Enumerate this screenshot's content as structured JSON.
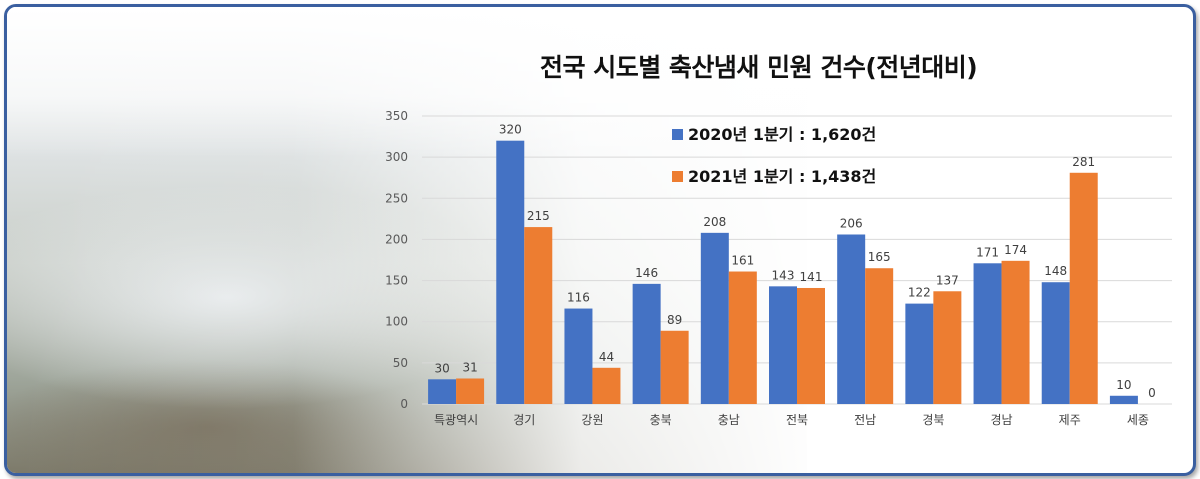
{
  "chart_data": {
    "type": "bar",
    "title": "전국 시도별 축산냄새 민원 건수(전년대비)",
    "categories": [
      "특광역시",
      "경기",
      "강원",
      "충북",
      "충남",
      "전북",
      "전남",
      "경북",
      "경남",
      "제주",
      "세종"
    ],
    "series": [
      {
        "name": "2020년 1분기 : 1,620건",
        "color": "#4472c4",
        "values": [
          30,
          320,
          116,
          146,
          208,
          143,
          206,
          122,
          171,
          148,
          10
        ]
      },
      {
        "name": "2021년 1분기 : 1,438건",
        "color": "#ed7d31",
        "values": [
          31,
          215,
          44,
          89,
          161,
          141,
          165,
          137,
          174,
          281,
          0
        ]
      }
    ],
    "ylim": [
      0,
      350
    ],
    "yticks": [
      0,
      50,
      100,
      150,
      200,
      250,
      300,
      350
    ],
    "ytick_labels": [
      "0",
      "50",
      "100",
      "150",
      "200",
      "250",
      "300",
      "350"
    ],
    "grid": true,
    "legend_position": "top-center"
  },
  "colors": {
    "frame_border": "#3a5fa0",
    "gridline": "#d9d9d9"
  }
}
